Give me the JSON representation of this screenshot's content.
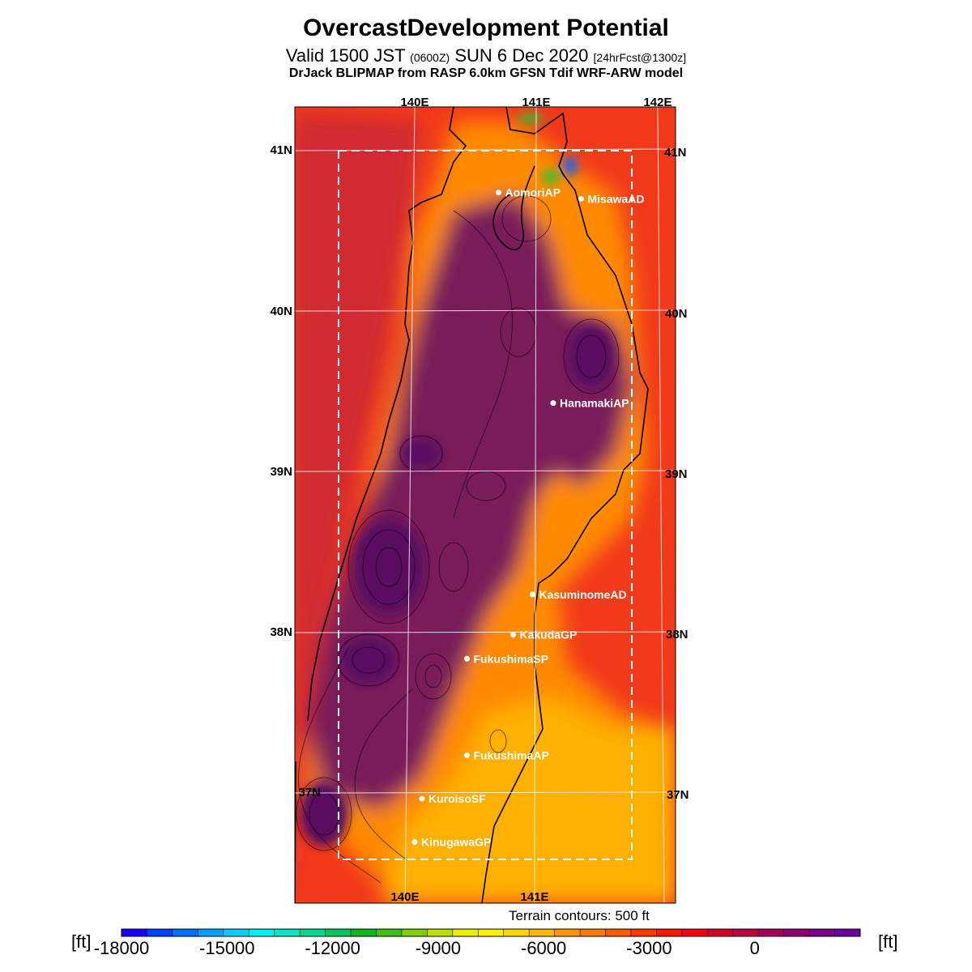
{
  "title": "OvercastDevelopment Potential",
  "subtitle": {
    "valid": "Valid 1500 JST",
    "utc": "(0600Z)",
    "date": "SUN 6 Dec 2020",
    "forecast": "[24hrFcst@1300z]"
  },
  "credit": "DrJack BLIPMAP from RASP 6.0km GFSN Tdif WRF-ARW model",
  "map": {
    "lon_range": [
      139.0,
      142.1
    ],
    "lat_range": [
      36.5,
      41.25
    ],
    "top_lon_labels": [
      "140E",
      "141E",
      "142E"
    ],
    "bottom_lon_labels": [
      "140E",
      "141E"
    ],
    "lat_labels": [
      "41N",
      "40N",
      "39N",
      "38N",
      "37N"
    ],
    "stations": [
      {
        "name": "AomoriAP",
        "lon": 140.69,
        "lat": 40.74
      },
      {
        "name": "MisawaAD",
        "lon": 141.37,
        "lat": 40.7
      },
      {
        "name": "HanamakiAP",
        "lon": 141.14,
        "lat": 39.43
      },
      {
        "name": "KasuminomeAD",
        "lon": 140.97,
        "lat": 38.24
      },
      {
        "name": "KakudaGP",
        "lon": 140.81,
        "lat": 37.99
      },
      {
        "name": "FukushimaSP",
        "lon": 140.43,
        "lat": 37.84
      },
      {
        "name": "FukushimaAP",
        "lon": 140.43,
        "lat": 37.24
      },
      {
        "name": "KuroisoSF",
        "lon": 140.06,
        "lat": 36.97
      },
      {
        "name": "KinugawaGP",
        "lon": 140.0,
        "lat": 36.7
      }
    ],
    "terrain_contours_label": "Terrain contours: 500 ft"
  },
  "colorbar": {
    "unit_label": "[ft]",
    "tick_labels": [
      "-18000",
      "-15000",
      "-12000",
      "-9000",
      "-6000",
      "-3000",
      "0"
    ],
    "tick_values": [
      -18000,
      -15000,
      -12000,
      -9000,
      -6000,
      -3000,
      0
    ],
    "range": [
      -18000,
      3000
    ],
    "colors": [
      "#1a00ff",
      "#0040ff",
      "#0070ff",
      "#00a0ff",
      "#00d0ff",
      "#00f0f0",
      "#00e8c0",
      "#00d890",
      "#00c860",
      "#10b820",
      "#40c010",
      "#80d000",
      "#b8e000",
      "#e8f000",
      "#fff000",
      "#ffd800",
      "#ffb800",
      "#ff9800",
      "#ff7800",
      "#ff5a00",
      "#ff3a00",
      "#ff1800",
      "#f00010",
      "#d8002a",
      "#c00040",
      "#a80058",
      "#900070",
      "#7a0088",
      "#6a00a0"
    ]
  },
  "field_colors": {
    "ocean": "#f23a1a",
    "plain": "#ff8a00",
    "south_plain": "#ffb000",
    "mountain": "#7a1a5a",
    "deep_mountain": "#5a1060",
    "coast_band": "#d02a30",
    "high_green": "#30c030",
    "high_blue": "#1060ff"
  }
}
